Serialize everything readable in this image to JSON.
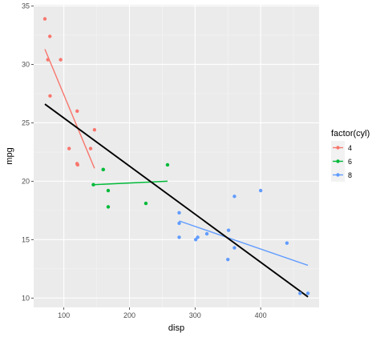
{
  "chart_data": {
    "type": "scatter",
    "xlabel": "disp",
    "ylabel": "mpg",
    "xlim": [
      54,
      489
    ],
    "ylim": [
      9.2,
      35.1
    ],
    "x_ticks": [
      100,
      200,
      300,
      400
    ],
    "y_ticks": [
      10,
      15,
      20,
      25,
      30,
      35
    ],
    "x_tick_labels": [
      "100",
      "200",
      "300",
      "400"
    ],
    "y_tick_labels": [
      "10",
      "15",
      "20",
      "25",
      "30",
      "35"
    ],
    "grid": true,
    "legend": {
      "title": "factor(cyl)",
      "position": "right",
      "entries": [
        "4",
        "6",
        "8"
      ]
    },
    "series": [
      {
        "name": "4",
        "color": "#f8766d",
        "points": [
          [
            108,
            22.8
          ],
          [
            146.7,
            24.4
          ],
          [
            140.8,
            22.8
          ],
          [
            78.7,
            32.4
          ],
          [
            75.7,
            30.4
          ],
          [
            71.1,
            33.9
          ],
          [
            120.1,
            21.5
          ],
          [
            79,
            27.3
          ],
          [
            120.3,
            26
          ],
          [
            95.1,
            30.4
          ],
          [
            121,
            21.4
          ]
        ],
        "fit_line": [
          [
            71.1,
            31.3
          ],
          [
            146.7,
            21.1
          ]
        ]
      },
      {
        "name": "6",
        "color": "#00ba38",
        "points": [
          [
            160,
            21
          ],
          [
            160,
            21
          ],
          [
            258,
            21.4
          ],
          [
            225,
            18.1
          ],
          [
            167.6,
            19.2
          ],
          [
            167.6,
            17.8
          ],
          [
            145,
            19.7
          ]
        ],
        "fit_line": [
          [
            145,
            19.7
          ],
          [
            258,
            20.0
          ]
        ]
      },
      {
        "name": "8",
        "color": "#619cff",
        "points": [
          [
            360,
            18.7
          ],
          [
            360,
            14.3
          ],
          [
            275.8,
            16.4
          ],
          [
            275.8,
            17.3
          ],
          [
            275.8,
            15.2
          ],
          [
            472,
            10.4
          ],
          [
            460,
            10.4
          ],
          [
            440,
            14.7
          ],
          [
            318,
            15.5
          ],
          [
            304,
            15.2
          ],
          [
            350,
            13.3
          ],
          [
            400,
            19.2
          ],
          [
            351,
            15.8
          ],
          [
            301,
            15
          ]
        ],
        "fit_line": [
          [
            275.8,
            16.6
          ],
          [
            472,
            12.8
          ]
        ]
      }
    ],
    "overall_fit": {
      "color": "#000000",
      "line": [
        [
          71.1,
          26.6
        ],
        [
          472,
          10.1
        ]
      ]
    }
  }
}
